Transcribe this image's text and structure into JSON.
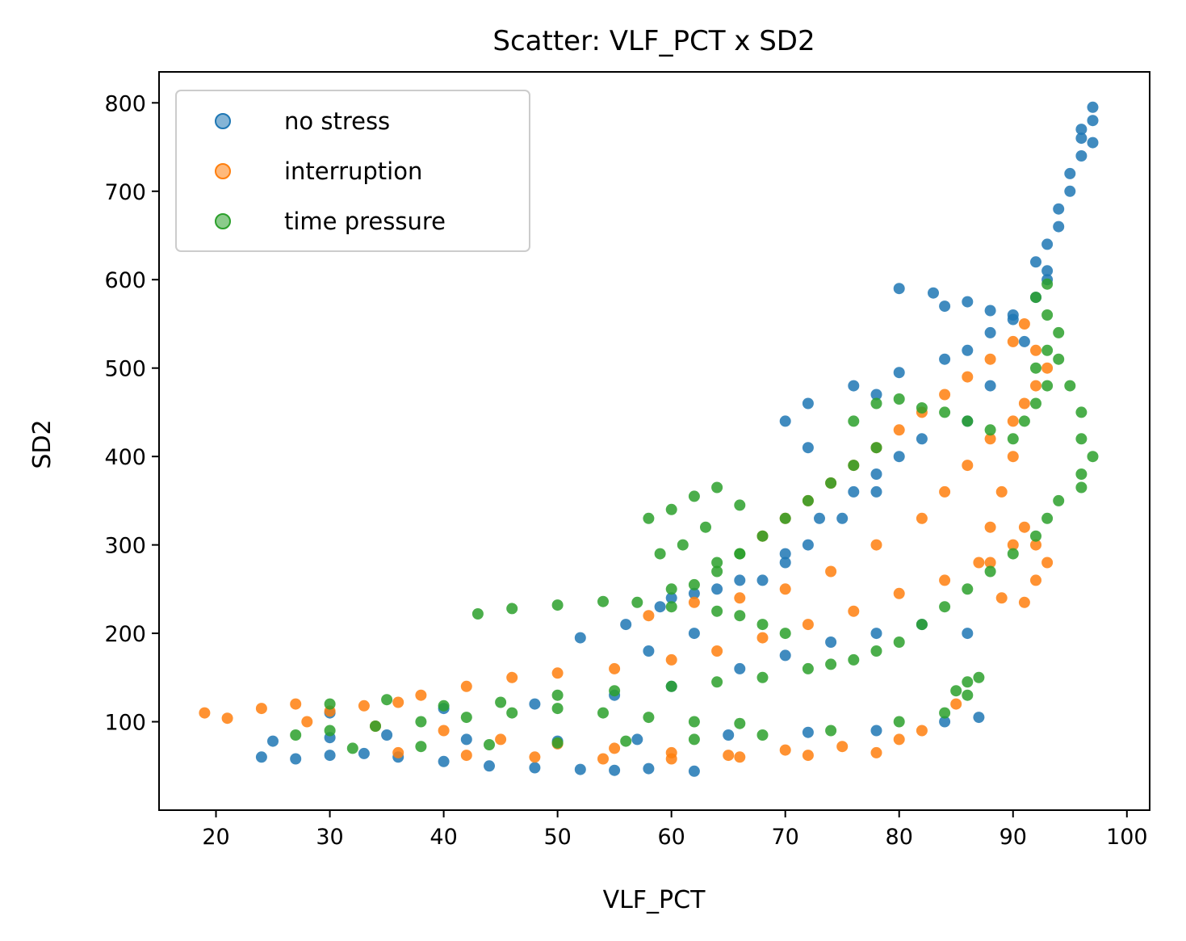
{
  "chart_data": {
    "type": "scatter",
    "title": "Scatter: VLF_PCT x SD2",
    "xlabel": "VLF_PCT",
    "ylabel": "SD2",
    "xlim": [
      15,
      102
    ],
    "ylim": [
      0,
      835
    ],
    "xticks": [
      20,
      30,
      40,
      50,
      60,
      70,
      80,
      90,
      100
    ],
    "yticks": [
      100,
      200,
      300,
      400,
      500,
      600,
      700,
      800
    ],
    "grid": false,
    "legend_position": "top-left",
    "series": [
      {
        "name": "no stress",
        "color": "#1f77b4",
        "points": [
          [
            24,
            60
          ],
          [
            27,
            58
          ],
          [
            30,
            62
          ],
          [
            33,
            64
          ],
          [
            36,
            60
          ],
          [
            40,
            55
          ],
          [
            44,
            50
          ],
          [
            48,
            48
          ],
          [
            52,
            46
          ],
          [
            55,
            45
          ],
          [
            58,
            47
          ],
          [
            62,
            44
          ],
          [
            25,
            78
          ],
          [
            30,
            82
          ],
          [
            35,
            85
          ],
          [
            42,
            80
          ],
          [
            50,
            78
          ],
          [
            57,
            80
          ],
          [
            65,
            85
          ],
          [
            72,
            88
          ],
          [
            78,
            90
          ],
          [
            84,
            100
          ],
          [
            87,
            105
          ],
          [
            30,
            110
          ],
          [
            40,
            115
          ],
          [
            48,
            120
          ],
          [
            55,
            130
          ],
          [
            60,
            140
          ],
          [
            66,
            160
          ],
          [
            70,
            175
          ],
          [
            74,
            190
          ],
          [
            78,
            200
          ],
          [
            82,
            210
          ],
          [
            86,
            200
          ],
          [
            52,
            195
          ],
          [
            56,
            210
          ],
          [
            59,
            230
          ],
          [
            62,
            245
          ],
          [
            66,
            260
          ],
          [
            70,
            290
          ],
          [
            73,
            330
          ],
          [
            76,
            360
          ],
          [
            78,
            380
          ],
          [
            72,
            410
          ],
          [
            70,
            440
          ],
          [
            72,
            460
          ],
          [
            76,
            480
          ],
          [
            78,
            470
          ],
          [
            80,
            495
          ],
          [
            84,
            510
          ],
          [
            86,
            520
          ],
          [
            88,
            540
          ],
          [
            90,
            555
          ],
          [
            84,
            570
          ],
          [
            80,
            590
          ],
          [
            83,
            585
          ],
          [
            86,
            575
          ],
          [
            88,
            565
          ],
          [
            90,
            560
          ],
          [
            92,
            580
          ],
          [
            93,
            600
          ],
          [
            92,
            620
          ],
          [
            93,
            640
          ],
          [
            94,
            660
          ],
          [
            94,
            680
          ],
          [
            95,
            700
          ],
          [
            95,
            720
          ],
          [
            96,
            740
          ],
          [
            96,
            760
          ],
          [
            97,
            780
          ],
          [
            97,
            795
          ],
          [
            96,
            770
          ],
          [
            97,
            755
          ],
          [
            93,
            610
          ],
          [
            91,
            530
          ],
          [
            88,
            480
          ],
          [
            86,
            440
          ],
          [
            82,
            420
          ],
          [
            80,
            400
          ],
          [
            78,
            360
          ],
          [
            75,
            330
          ],
          [
            72,
            300
          ],
          [
            70,
            280
          ],
          [
            68,
            260
          ],
          [
            64,
            250
          ],
          [
            60,
            240
          ],
          [
            62,
            200
          ],
          [
            58,
            180
          ]
        ]
      },
      {
        "name": "interruption",
        "color": "#ff7f0e",
        "points": [
          [
            19,
            110
          ],
          [
            21,
            104
          ],
          [
            24,
            115
          ],
          [
            27,
            120
          ],
          [
            30,
            112
          ],
          [
            33,
            118
          ],
          [
            36,
            122
          ],
          [
            38,
            130
          ],
          [
            42,
            140
          ],
          [
            46,
            150
          ],
          [
            50,
            155
          ],
          [
            28,
            100
          ],
          [
            34,
            95
          ],
          [
            40,
            90
          ],
          [
            45,
            80
          ],
          [
            50,
            75
          ],
          [
            55,
            70
          ],
          [
            60,
            65
          ],
          [
            65,
            62
          ],
          [
            70,
            68
          ],
          [
            75,
            72
          ],
          [
            80,
            80
          ],
          [
            36,
            65
          ],
          [
            42,
            62
          ],
          [
            48,
            60
          ],
          [
            54,
            58
          ],
          [
            60,
            58
          ],
          [
            66,
            60
          ],
          [
            72,
            62
          ],
          [
            78,
            65
          ],
          [
            82,
            90
          ],
          [
            85,
            120
          ],
          [
            55,
            160
          ],
          [
            60,
            170
          ],
          [
            64,
            180
          ],
          [
            68,
            195
          ],
          [
            72,
            210
          ],
          [
            76,
            225
          ],
          [
            80,
            245
          ],
          [
            84,
            260
          ],
          [
            88,
            280
          ],
          [
            90,
            300
          ],
          [
            91,
            320
          ],
          [
            58,
            220
          ],
          [
            62,
            235
          ],
          [
            66,
            240
          ],
          [
            70,
            250
          ],
          [
            74,
            270
          ],
          [
            78,
            300
          ],
          [
            82,
            330
          ],
          [
            84,
            360
          ],
          [
            86,
            390
          ],
          [
            88,
            420
          ],
          [
            90,
            440
          ],
          [
            68,
            310
          ],
          [
            70,
            330
          ],
          [
            72,
            350
          ],
          [
            74,
            370
          ],
          [
            76,
            390
          ],
          [
            78,
            410
          ],
          [
            80,
            430
          ],
          [
            82,
            450
          ],
          [
            84,
            470
          ],
          [
            86,
            490
          ],
          [
            88,
            510
          ],
          [
            90,
            530
          ],
          [
            91,
            550
          ],
          [
            92,
            520
          ],
          [
            93,
            500
          ],
          [
            92,
            480
          ],
          [
            91,
            460
          ],
          [
            90,
            400
          ],
          [
            89,
            360
          ],
          [
            88,
            320
          ],
          [
            87,
            280
          ],
          [
            89,
            240
          ],
          [
            91,
            235
          ],
          [
            92,
            260
          ],
          [
            93,
            280
          ],
          [
            92,
            300
          ]
        ]
      },
      {
        "name": "time pressure",
        "color": "#2ca02c",
        "points": [
          [
            27,
            85
          ],
          [
            30,
            90
          ],
          [
            34,
            95
          ],
          [
            38,
            100
          ],
          [
            42,
            105
          ],
          [
            46,
            110
          ],
          [
            50,
            115
          ],
          [
            54,
            110
          ],
          [
            58,
            105
          ],
          [
            62,
            100
          ],
          [
            66,
            98
          ],
          [
            30,
            120
          ],
          [
            35,
            125
          ],
          [
            40,
            118
          ],
          [
            45,
            122
          ],
          [
            50,
            130
          ],
          [
            55,
            135
          ],
          [
            60,
            140
          ],
          [
            64,
            145
          ],
          [
            68,
            150
          ],
          [
            72,
            160
          ],
          [
            32,
            70
          ],
          [
            38,
            72
          ],
          [
            44,
            74
          ],
          [
            50,
            76
          ],
          [
            56,
            78
          ],
          [
            62,
            80
          ],
          [
            68,
            85
          ],
          [
            74,
            90
          ],
          [
            80,
            100
          ],
          [
            84,
            110
          ],
          [
            86,
            130
          ],
          [
            43,
            222
          ],
          [
            46,
            228
          ],
          [
            50,
            232
          ],
          [
            54,
            236
          ],
          [
            57,
            235
          ],
          [
            60,
            230
          ],
          [
            64,
            225
          ],
          [
            66,
            220
          ],
          [
            68,
            210
          ],
          [
            70,
            200
          ],
          [
            60,
            250
          ],
          [
            62,
            255
          ],
          [
            64,
            270
          ],
          [
            66,
            290
          ],
          [
            68,
            310
          ],
          [
            70,
            330
          ],
          [
            72,
            350
          ],
          [
            74,
            370
          ],
          [
            76,
            390
          ],
          [
            78,
            410
          ],
          [
            58,
            330
          ],
          [
            60,
            340
          ],
          [
            62,
            355
          ],
          [
            64,
            365
          ],
          [
            66,
            345
          ],
          [
            63,
            320
          ],
          [
            61,
            300
          ],
          [
            59,
            290
          ],
          [
            64,
            280
          ],
          [
            66,
            290
          ],
          [
            76,
            440
          ],
          [
            78,
            460
          ],
          [
            80,
            465
          ],
          [
            82,
            455
          ],
          [
            84,
            450
          ],
          [
            86,
            440
          ],
          [
            88,
            430
          ],
          [
            90,
            420
          ],
          [
            91,
            440
          ],
          [
            92,
            460
          ],
          [
            93,
            480
          ],
          [
            92,
            500
          ],
          [
            93,
            520
          ],
          [
            94,
            540
          ],
          [
            93,
            560
          ],
          [
            92,
            580
          ],
          [
            93,
            595
          ],
          [
            94,
            510
          ],
          [
            95,
            480
          ],
          [
            96,
            450
          ],
          [
            96,
            420
          ],
          [
            97,
            400
          ],
          [
            96,
            380
          ],
          [
            96,
            365
          ],
          [
            94,
            350
          ],
          [
            93,
            330
          ],
          [
            92,
            310
          ],
          [
            90,
            290
          ],
          [
            88,
            270
          ],
          [
            86,
            250
          ],
          [
            84,
            230
          ],
          [
            82,
            210
          ],
          [
            80,
            190
          ],
          [
            78,
            180
          ],
          [
            76,
            170
          ],
          [
            74,
            165
          ],
          [
            86,
            145
          ],
          [
            87,
            150
          ],
          [
            85,
            135
          ]
        ]
      }
    ]
  }
}
